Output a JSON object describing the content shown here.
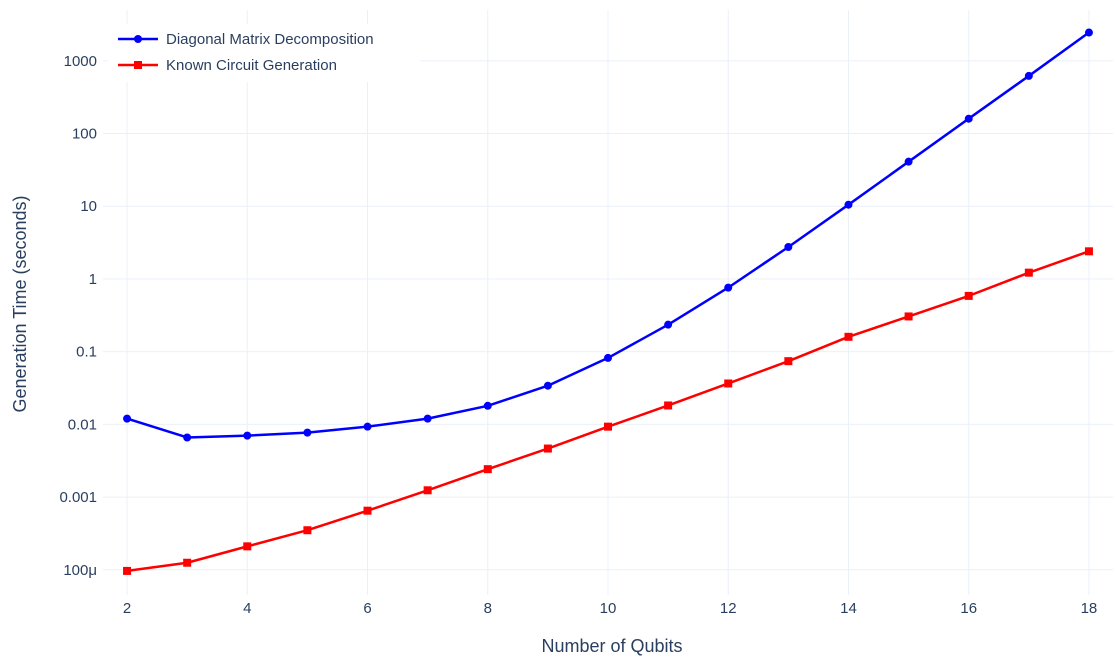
{
  "chart_data": {
    "type": "line",
    "title": "",
    "xlabel": "Number of Qubits",
    "ylabel": "Generation Time (seconds)",
    "x_scale": "linear",
    "y_scale": "log",
    "xlim": [
      1.6,
      18.4
    ],
    "ylim": [
      4.5e-05,
      5000
    ],
    "x_ticks": [
      2,
      4,
      6,
      8,
      10,
      12,
      14,
      16,
      18
    ],
    "x_tick_labels": [
      "2",
      "4",
      "6",
      "8",
      "10",
      "12",
      "14",
      "16",
      "18"
    ],
    "y_ticks": [
      0.0001,
      0.001,
      0.01,
      0.1,
      1,
      10,
      100,
      1000
    ],
    "y_tick_labels": [
      "100μ",
      "0.001",
      "0.01",
      "0.1",
      "1",
      "10",
      "100",
      "1000"
    ],
    "grid": true,
    "legend_position": "top-left",
    "x": [
      2,
      3,
      4,
      5,
      6,
      7,
      8,
      9,
      10,
      11,
      12,
      13,
      14,
      15,
      16,
      17,
      18
    ],
    "series": [
      {
        "name": "Diagonal Matrix Decomposition",
        "color": "#0000ff",
        "marker": "circle",
        "values": [
          0.012,
          0.0066,
          0.007,
          0.0077,
          0.0093,
          0.012,
          0.018,
          0.034,
          0.082,
          0.235,
          0.76,
          2.75,
          10.5,
          41,
          160,
          620,
          2450
        ]
      },
      {
        "name": "Known Circuit Generation",
        "color": "#ff0000",
        "marker": "square",
        "values": [
          9.65e-05,
          0.000125,
          0.00021,
          0.00035,
          0.00065,
          0.00124,
          0.00242,
          0.00465,
          0.0093,
          0.0182,
          0.0365,
          0.074,
          0.16,
          0.305,
          0.585,
          1.22,
          2.4
        ]
      }
    ]
  }
}
